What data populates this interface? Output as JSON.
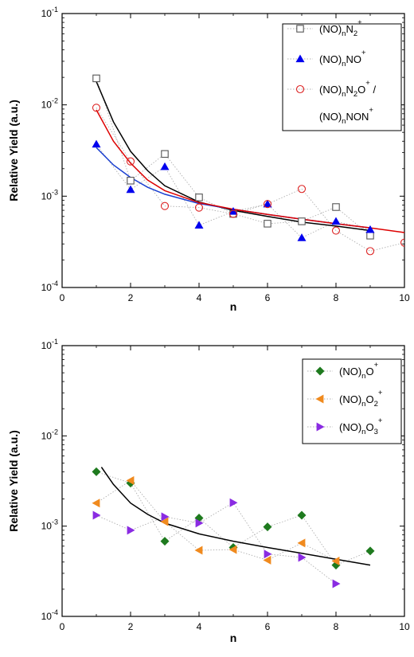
{
  "chart_data": [
    {
      "type": "scatter",
      "title": "",
      "xlabel": "n",
      "ylabel": "Relative Yield  (a.u.)",
      "xlim": [
        0,
        10
      ],
      "ylim": [
        0.0001,
        0.1
      ],
      "yscale": "log",
      "x_ticks": [
        0,
        2,
        4,
        6,
        8,
        10
      ],
      "x_tick_labels": [
        "0",
        "2",
        "4",
        "6",
        "8",
        "10"
      ],
      "y_ticks": [
        0.0001,
        0.001,
        0.01,
        0.1
      ],
      "y_tick_labels": [
        {
          "base": "10",
          "exp": "-4"
        },
        {
          "base": "10",
          "exp": "-3"
        },
        {
          "base": "10",
          "exp": "-2"
        },
        {
          "base": "10",
          "exp": "-1"
        }
      ],
      "grid": false,
      "legend_position": "top-right",
      "series": [
        {
          "legend": [
            {
              "t": "(NO)",
              "b": ""
            },
            {
              "t": "n",
              "b": "sub"
            },
            {
              "t": "N",
              "b": ""
            },
            {
              "t": "2",
              "b": "sub"
            },
            {
              "t": "+",
              "b": "sup"
            }
          ],
          "marker": "square-open",
          "color": "#555555",
          "x": [
            1,
            2,
            3,
            4,
            5,
            6,
            7,
            8,
            9
          ],
          "y": [
            0.0195,
            0.00148,
            0.0029,
            0.00097,
            0.00064,
            0.0005,
            0.00053,
            0.00076,
            0.00037
          ],
          "fit": {
            "color": "#000000",
            "x": [
              1,
              1.5,
              2,
              2.5,
              3,
              4,
              5,
              6,
              7,
              8,
              9
            ],
            "y": [
              0.018,
              0.0065,
              0.0031,
              0.0019,
              0.0013,
              0.00086,
              0.0007,
              0.0006,
              0.00052,
              0.00047,
              0.00042
            ]
          }
        },
        {
          "legend": [
            {
              "t": "(NO)",
              "b": ""
            },
            {
              "t": "n",
              "b": "sub"
            },
            {
              "t": "NO",
              "b": ""
            },
            {
              "t": "+",
              "b": "sup"
            }
          ],
          "marker": "triangle-up",
          "color": "#0000ee",
          "x": [
            1,
            2,
            3,
            4,
            5,
            6,
            7,
            8,
            9
          ],
          "y": [
            0.0037,
            0.00118,
            0.0021,
            0.00048,
            0.00068,
            0.00082,
            0.00035,
            0.00053,
            0.00043
          ],
          "fit": {
            "color": "#1a3fd0",
            "x": [
              1,
              1.5,
              2,
              2.5,
              3,
              4,
              5,
              6,
              7,
              8,
              9
            ],
            "y": [
              0.0034,
              0.0022,
              0.0016,
              0.00125,
              0.00105,
              0.00083,
              0.00072,
              0.00063,
              0.00056,
              0.0005,
              0.00045
            ]
          }
        },
        {
          "legend": [
            {
              "t": "(NO)",
              "b": ""
            },
            {
              "t": "n",
              "b": "sub"
            },
            {
              "t": "N",
              "b": ""
            },
            {
              "t": "2",
              "b": "sub"
            },
            {
              "t": "O",
              "b": ""
            },
            {
              "t": "+",
              "b": "sup"
            },
            {
              "t": " /",
              "b": ""
            }
          ],
          "legend2": [
            {
              "t": "(NO)",
              "b": ""
            },
            {
              "t": "n",
              "b": "sub"
            },
            {
              "t": "NON",
              "b": ""
            },
            {
              "t": "+",
              "b": "sup"
            }
          ],
          "marker": "circle-open",
          "color": "#dd2222",
          "x": [
            1,
            2,
            3,
            4,
            5,
            6,
            7,
            8,
            9,
            10
          ],
          "y": [
            0.0093,
            0.0024,
            0.00078,
            0.00075,
            0.00064,
            0.00082,
            0.0012,
            0.00042,
            0.00025,
            0.00031
          ],
          "fit": {
            "color": "#dd0000",
            "x": [
              1,
              1.5,
              2,
              2.5,
              3,
              4,
              5,
              6,
              7,
              8,
              9,
              10
            ],
            "y": [
              0.0088,
              0.004,
              0.0023,
              0.0015,
              0.00115,
              0.00085,
              0.00072,
              0.00063,
              0.00056,
              0.0005,
              0.00045,
              0.0004
            ]
          }
        }
      ]
    },
    {
      "type": "scatter",
      "title": "",
      "xlabel": "n",
      "ylabel": "Relative Yield  (a.u.)",
      "xlim": [
        0,
        10
      ],
      "ylim": [
        0.0001,
        0.1
      ],
      "yscale": "log",
      "x_ticks": [
        0,
        2,
        4,
        6,
        8,
        10
      ],
      "x_tick_labels": [
        "0",
        "2",
        "4",
        "6",
        "8",
        "10"
      ],
      "y_ticks": [
        0.0001,
        0.001,
        0.01,
        0.1
      ],
      "y_tick_labels": [
        {
          "base": "10",
          "exp": "-4"
        },
        {
          "base": "10",
          "exp": "-3"
        },
        {
          "base": "10",
          "exp": "-2"
        },
        {
          "base": "10",
          "exp": "-1"
        }
      ],
      "grid": false,
      "legend_position": "top-right",
      "series": [
        {
          "legend": [
            {
              "t": "(NO)",
              "b": ""
            },
            {
              "t": "n",
              "b": "sub"
            },
            {
              "t": "O",
              "b": ""
            },
            {
              "t": "+",
              "b": "sup"
            }
          ],
          "marker": "diamond",
          "color": "#1e7a1e",
          "x": [
            1,
            2,
            3,
            4,
            5,
            6,
            7,
            8,
            9
          ],
          "y": [
            0.004,
            0.003,
            0.00068,
            0.00123,
            0.00058,
            0.00098,
            0.00132,
            0.00037,
            0.00053
          ]
        },
        {
          "legend": [
            {
              "t": "(NO)",
              "b": ""
            },
            {
              "t": "n",
              "b": "sub"
            },
            {
              "t": "O",
              "b": ""
            },
            {
              "t": "2",
              "b": "sub"
            },
            {
              "t": "+",
              "b": "sup"
            }
          ],
          "marker": "triangle-left",
          "color": "#f08a1e",
          "x": [
            1,
            2,
            3,
            4,
            5,
            6,
            7,
            8
          ],
          "y": [
            0.0018,
            0.0032,
            0.00112,
            0.00054,
            0.00055,
            0.00042,
            0.00065,
            0.00041
          ]
        },
        {
          "legend": [
            {
              "t": "(NO)",
              "b": ""
            },
            {
              "t": "n",
              "b": "sub"
            },
            {
              "t": "O",
              "b": ""
            },
            {
              "t": "3",
              "b": "sub"
            },
            {
              "t": "+",
              "b": "sup"
            }
          ],
          "marker": "triangle-right",
          "color": "#8a2be2",
          "x": [
            1,
            2,
            3,
            4,
            5,
            6,
            7,
            8
          ],
          "y": [
            0.00132,
            0.0009,
            0.00127,
            0.00108,
            0.00182,
            0.00049,
            0.00045,
            0.00023
          ]
        }
      ],
      "fit": {
        "color": "#000000",
        "x": [
          1.15,
          1.5,
          2,
          2.5,
          3,
          4,
          5,
          6,
          7,
          8,
          9
        ],
        "y": [
          0.0045,
          0.0029,
          0.0018,
          0.00135,
          0.00108,
          0.00082,
          0.00068,
          0.00058,
          0.0005,
          0.00043,
          0.00037
        ]
      }
    }
  ]
}
